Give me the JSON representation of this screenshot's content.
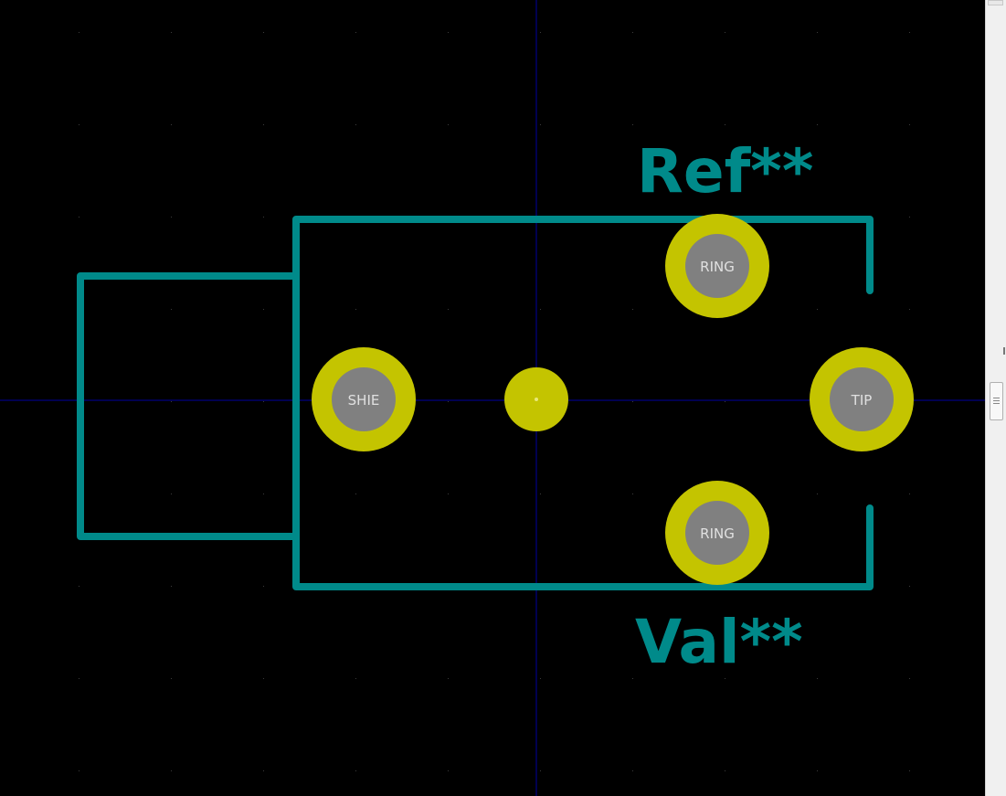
{
  "canvas": {
    "background": "#000000",
    "grid_color": "#3c3c3c",
    "crosshair_color": "#0000a0",
    "silkscreen_color": "#008a8a",
    "pad_copper_color": "#c4c400",
    "pad_hole_color": "#808080",
    "pad_label_color": "#e0e0e0"
  },
  "footprint": {
    "reference": "Ref**",
    "value": "Val**",
    "pads": [
      {
        "name": "RING",
        "kind": "through-hole"
      },
      {
        "name": "SHIE",
        "kind": "through-hole"
      },
      {
        "name": "TIP",
        "kind": "through-hole"
      },
      {
        "name": "RING",
        "kind": "through-hole"
      },
      {
        "name": "",
        "kind": "npth-center"
      }
    ]
  },
  "scrollbar": {
    "orientation": "vertical"
  }
}
